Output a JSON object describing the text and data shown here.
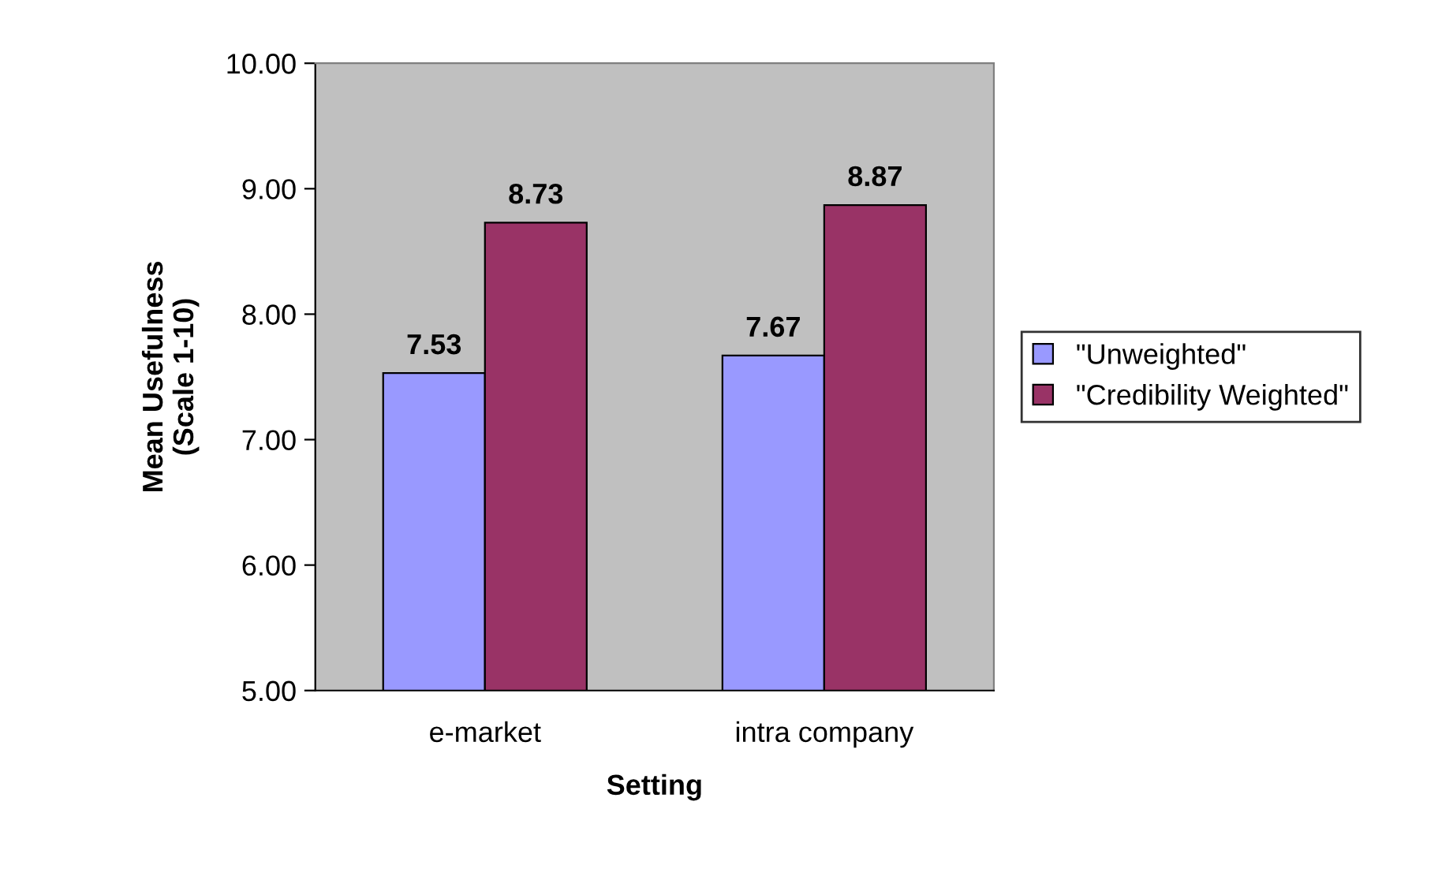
{
  "chart_data": {
    "type": "bar",
    "xlabel": "Setting",
    "ylabel": "Mean Usefulness\n(Scale 1-10)",
    "categories": [
      "e-market",
      "intra company"
    ],
    "series": [
      {
        "name": "\"Unweighted\"",
        "color": "#9999ff",
        "values": [
          7.53,
          7.67
        ]
      },
      {
        "name": "\"Credibility Weighted\"",
        "color": "#993366",
        "values": [
          8.73,
          8.87
        ]
      }
    ],
    "ylim": [
      5,
      10
    ],
    "yticks": [
      {
        "value": 5,
        "label": "5.00"
      },
      {
        "value": 6,
        "label": "6.00"
      },
      {
        "value": 7,
        "label": "7.00"
      },
      {
        "value": 8,
        "label": "8.00"
      },
      {
        "value": 9,
        "label": "9.00"
      },
      {
        "value": 10,
        "label": "10.00"
      }
    ],
    "data_labels": true,
    "legend": "right",
    "grid": false
  }
}
